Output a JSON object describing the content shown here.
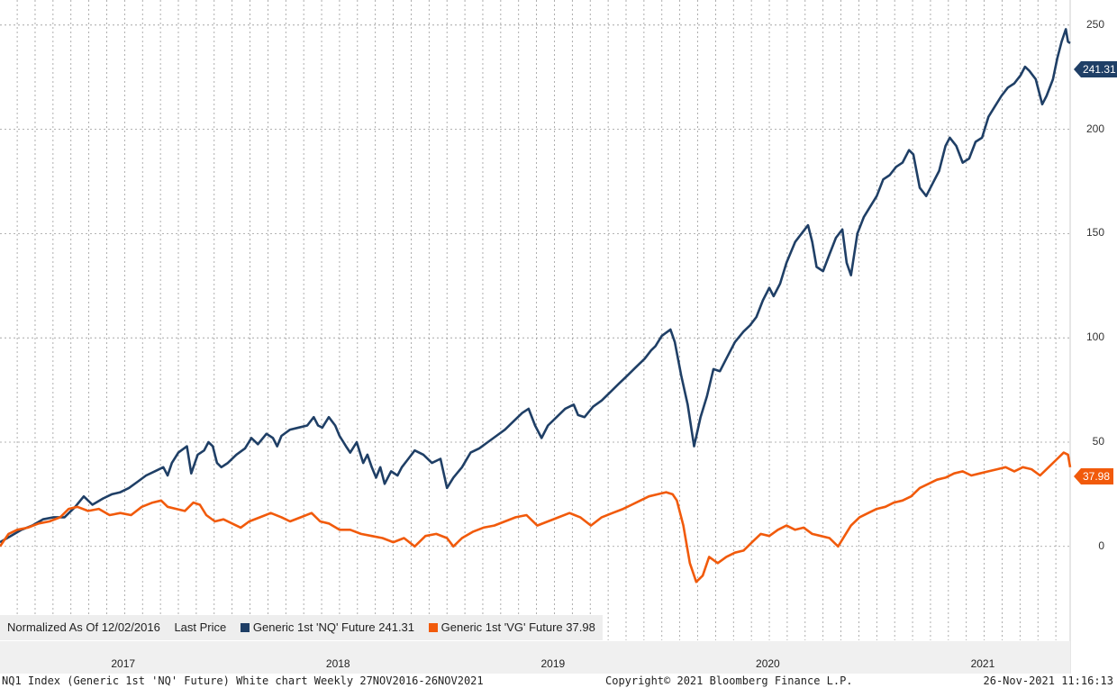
{
  "chart_data": {
    "type": "line",
    "title": "NQ1 Index (Generic 1st 'NQ' Future) White chart",
    "normalized_label": "Normalized As Of 12/02/2016",
    "price_label": "Last Price",
    "x_range": [
      2016.92,
      2021.9
    ],
    "ylim": [
      -45,
      262
    ],
    "yticks": [
      0,
      50,
      100,
      150,
      200,
      250
    ],
    "xticks": [
      {
        "label": "2017",
        "x": 2017.0
      },
      {
        "label": "2018",
        "x": 2018.0
      },
      {
        "label": "2019",
        "x": 2019.0
      },
      {
        "label": "2020",
        "x": 2020.0
      },
      {
        "label": "2021",
        "x": 2021.0
      }
    ],
    "series": [
      {
        "name": "Generic 1st 'NQ' Future",
        "last": "241.31",
        "color": "#1f3f66",
        "points": [
          [
            2016.92,
            2
          ],
          [
            2016.97,
            5
          ],
          [
            2017.02,
            8
          ],
          [
            2017.07,
            10
          ],
          [
            2017.12,
            13
          ],
          [
            2017.17,
            14
          ],
          [
            2017.22,
            14
          ],
          [
            2017.27,
            19
          ],
          [
            2017.31,
            24
          ],
          [
            2017.35,
            20
          ],
          [
            2017.4,
            23
          ],
          [
            2017.44,
            25
          ],
          [
            2017.48,
            26
          ],
          [
            2017.52,
            28
          ],
          [
            2017.56,
            31
          ],
          [
            2017.6,
            34
          ],
          [
            2017.64,
            36
          ],
          [
            2017.68,
            38
          ],
          [
            2017.7,
            34
          ],
          [
            2017.72,
            40
          ],
          [
            2017.75,
            45
          ],
          [
            2017.79,
            48
          ],
          [
            2017.81,
            35
          ],
          [
            2017.84,
            44
          ],
          [
            2017.87,
            46
          ],
          [
            2017.89,
            50
          ],
          [
            2017.91,
            48
          ],
          [
            2017.93,
            40
          ],
          [
            2017.95,
            38
          ],
          [
            2017.98,
            40
          ],
          [
            2018.02,
            44
          ],
          [
            2018.06,
            47
          ],
          [
            2018.09,
            52
          ],
          [
            2018.12,
            49
          ],
          [
            2018.16,
            54
          ],
          [
            2018.19,
            52
          ],
          [
            2018.21,
            48
          ],
          [
            2018.23,
            53
          ],
          [
            2018.27,
            56
          ],
          [
            2018.31,
            57
          ],
          [
            2018.35,
            58
          ],
          [
            2018.38,
            62
          ],
          [
            2018.4,
            58
          ],
          [
            2018.42,
            57
          ],
          [
            2018.45,
            62
          ],
          [
            2018.48,
            58
          ],
          [
            2018.5,
            53
          ],
          [
            2018.53,
            48
          ],
          [
            2018.55,
            45
          ],
          [
            2018.58,
            50
          ],
          [
            2018.61,
            40
          ],
          [
            2018.63,
            44
          ],
          [
            2018.65,
            38
          ],
          [
            2018.67,
            33
          ],
          [
            2018.69,
            38
          ],
          [
            2018.71,
            30
          ],
          [
            2018.74,
            36
          ],
          [
            2018.77,
            34
          ],
          [
            2018.79,
            38
          ],
          [
            2018.82,
            42
          ],
          [
            2018.85,
            46
          ],
          [
            2018.89,
            44
          ],
          [
            2018.93,
            40
          ],
          [
            2018.97,
            42
          ],
          [
            2019.0,
            28
          ],
          [
            2019.03,
            33
          ],
          [
            2019.07,
            38
          ],
          [
            2019.11,
            45
          ],
          [
            2019.15,
            47
          ],
          [
            2019.19,
            50
          ],
          [
            2019.23,
            53
          ],
          [
            2019.27,
            56
          ],
          [
            2019.31,
            60
          ],
          [
            2019.35,
            64
          ],
          [
            2019.38,
            66
          ],
          [
            2019.41,
            58
          ],
          [
            2019.44,
            52
          ],
          [
            2019.47,
            58
          ],
          [
            2019.51,
            62
          ],
          [
            2019.55,
            66
          ],
          [
            2019.59,
            68
          ],
          [
            2019.61,
            63
          ],
          [
            2019.64,
            62
          ],
          [
            2019.68,
            67
          ],
          [
            2019.72,
            70
          ],
          [
            2019.76,
            74
          ],
          [
            2019.8,
            78
          ],
          [
            2019.84,
            82
          ],
          [
            2019.88,
            86
          ],
          [
            2019.92,
            90
          ],
          [
            2019.95,
            94
          ],
          [
            2019.97,
            96
          ],
          [
            2020.0,
            101
          ],
          [
            2020.04,
            104
          ],
          [
            2020.06,
            98
          ],
          [
            2020.09,
            82
          ],
          [
            2020.12,
            68
          ],
          [
            2020.15,
            48
          ],
          [
            2020.18,
            62
          ],
          [
            2020.21,
            72
          ],
          [
            2020.24,
            85
          ],
          [
            2020.27,
            84
          ],
          [
            2020.3,
            90
          ],
          [
            2020.34,
            98
          ],
          [
            2020.38,
            103
          ],
          [
            2020.41,
            106
          ],
          [
            2020.44,
            110
          ],
          [
            2020.47,
            118
          ],
          [
            2020.5,
            124
          ],
          [
            2020.52,
            120
          ],
          [
            2020.55,
            126
          ],
          [
            2020.58,
            136
          ],
          [
            2020.62,
            146
          ],
          [
            2020.65,
            150
          ],
          [
            2020.68,
            154
          ],
          [
            2020.7,
            146
          ],
          [
            2020.72,
            134
          ],
          [
            2020.75,
            132
          ],
          [
            2020.78,
            140
          ],
          [
            2020.81,
            148
          ],
          [
            2020.84,
            152
          ],
          [
            2020.86,
            136
          ],
          [
            2020.88,
            130
          ],
          [
            2020.91,
            150
          ],
          [
            2020.94,
            158
          ],
          [
            2020.97,
            163
          ],
          [
            2021.0,
            168
          ],
          [
            2021.03,
            176
          ],
          [
            2021.06,
            178
          ],
          [
            2021.09,
            182
          ],
          [
            2021.12,
            184
          ],
          [
            2021.15,
            190
          ],
          [
            2021.17,
            188
          ],
          [
            2021.2,
            172
          ],
          [
            2021.23,
            168
          ],
          [
            2021.26,
            174
          ],
          [
            2021.29,
            180
          ],
          [
            2021.32,
            192
          ],
          [
            2021.34,
            196
          ],
          [
            2021.37,
            192
          ],
          [
            2021.4,
            184
          ],
          [
            2021.43,
            186
          ],
          [
            2021.46,
            194
          ],
          [
            2021.49,
            196
          ],
          [
            2021.52,
            206
          ],
          [
            2021.55,
            211
          ],
          [
            2021.58,
            216
          ],
          [
            2021.61,
            220
          ],
          [
            2021.64,
            222
          ],
          [
            2021.67,
            226
          ],
          [
            2021.69,
            230
          ],
          [
            2021.71,
            228
          ],
          [
            2021.74,
            224
          ],
          [
            2021.77,
            212
          ],
          [
            2021.79,
            216
          ],
          [
            2021.82,
            224
          ],
          [
            2021.84,
            234
          ],
          [
            2021.86,
            242
          ],
          [
            2021.88,
            248
          ],
          [
            2021.89,
            242
          ],
          [
            2021.9,
            241.31
          ]
        ]
      },
      {
        "name": "Generic 1st 'VG' Future",
        "last": "37.98",
        "color": "#f15a0b",
        "points": [
          [
            2016.92,
            0
          ],
          [
            2016.96,
            6
          ],
          [
            2017.0,
            8
          ],
          [
            2017.05,
            9
          ],
          [
            2017.1,
            11
          ],
          [
            2017.15,
            12
          ],
          [
            2017.2,
            14
          ],
          [
            2017.24,
            18
          ],
          [
            2017.28,
            19
          ],
          [
            2017.33,
            17
          ],
          [
            2017.38,
            18
          ],
          [
            2017.43,
            15
          ],
          [
            2017.48,
            16
          ],
          [
            2017.53,
            15
          ],
          [
            2017.58,
            19
          ],
          [
            2017.63,
            21
          ],
          [
            2017.67,
            22
          ],
          [
            2017.7,
            19
          ],
          [
            2017.74,
            18
          ],
          [
            2017.78,
            17
          ],
          [
            2017.82,
            21
          ],
          [
            2017.85,
            20
          ],
          [
            2017.88,
            15
          ],
          [
            2017.92,
            12
          ],
          [
            2017.96,
            13
          ],
          [
            2018.0,
            11
          ],
          [
            2018.04,
            9
          ],
          [
            2018.08,
            12
          ],
          [
            2018.13,
            14
          ],
          [
            2018.18,
            16
          ],
          [
            2018.23,
            14
          ],
          [
            2018.27,
            12
          ],
          [
            2018.32,
            14
          ],
          [
            2018.37,
            16
          ],
          [
            2018.41,
            12
          ],
          [
            2018.45,
            11
          ],
          [
            2018.5,
            8
          ],
          [
            2018.55,
            8
          ],
          [
            2018.6,
            6
          ],
          [
            2018.65,
            5
          ],
          [
            2018.7,
            4
          ],
          [
            2018.75,
            2
          ],
          [
            2018.8,
            4
          ],
          [
            2018.85,
            0
          ],
          [
            2018.9,
            5
          ],
          [
            2018.95,
            6
          ],
          [
            2019.0,
            4
          ],
          [
            2019.03,
            0
          ],
          [
            2019.07,
            4
          ],
          [
            2019.12,
            7
          ],
          [
            2019.17,
            9
          ],
          [
            2019.22,
            10
          ],
          [
            2019.27,
            12
          ],
          [
            2019.32,
            14
          ],
          [
            2019.37,
            15
          ],
          [
            2019.42,
            10
          ],
          [
            2019.47,
            12
          ],
          [
            2019.52,
            14
          ],
          [
            2019.57,
            16
          ],
          [
            2019.62,
            14
          ],
          [
            2019.67,
            10
          ],
          [
            2019.72,
            14
          ],
          [
            2019.77,
            16
          ],
          [
            2019.82,
            18
          ],
          [
            2019.86,
            20
          ],
          [
            2019.9,
            22
          ],
          [
            2019.94,
            24
          ],
          [
            2019.98,
            25
          ],
          [
            2020.02,
            26
          ],
          [
            2020.05,
            25
          ],
          [
            2020.07,
            22
          ],
          [
            2020.1,
            10
          ],
          [
            2020.13,
            -8
          ],
          [
            2020.16,
            -17
          ],
          [
            2020.19,
            -14
          ],
          [
            2020.22,
            -5
          ],
          [
            2020.26,
            -8
          ],
          [
            2020.3,
            -5
          ],
          [
            2020.34,
            -3
          ],
          [
            2020.38,
            -2
          ],
          [
            2020.42,
            2
          ],
          [
            2020.46,
            6
          ],
          [
            2020.5,
            5
          ],
          [
            2020.54,
            8
          ],
          [
            2020.58,
            10
          ],
          [
            2020.62,
            8
          ],
          [
            2020.66,
            9
          ],
          [
            2020.7,
            6
          ],
          [
            2020.74,
            5
          ],
          [
            2020.78,
            4
          ],
          [
            2020.82,
            0
          ],
          [
            2020.85,
            5
          ],
          [
            2020.88,
            10
          ],
          [
            2020.92,
            14
          ],
          [
            2020.96,
            16
          ],
          [
            2021.0,
            18
          ],
          [
            2021.04,
            19
          ],
          [
            2021.08,
            21
          ],
          [
            2021.12,
            22
          ],
          [
            2021.16,
            24
          ],
          [
            2021.2,
            28
          ],
          [
            2021.24,
            30
          ],
          [
            2021.28,
            32
          ],
          [
            2021.32,
            33
          ],
          [
            2021.36,
            35
          ],
          [
            2021.4,
            36
          ],
          [
            2021.44,
            34
          ],
          [
            2021.48,
            35
          ],
          [
            2021.52,
            36
          ],
          [
            2021.56,
            37
          ],
          [
            2021.6,
            38
          ],
          [
            2021.64,
            36
          ],
          [
            2021.68,
            38
          ],
          [
            2021.72,
            37
          ],
          [
            2021.76,
            34
          ],
          [
            2021.8,
            38
          ],
          [
            2021.84,
            42
          ],
          [
            2021.87,
            45
          ],
          [
            2021.89,
            44
          ],
          [
            2021.9,
            37.98
          ]
        ]
      }
    ]
  },
  "footer": {
    "left": "NQ1 Index (Generic 1st 'NQ' Future) White chart  Weekly 27NOV2016-26NOV2021",
    "center": "Copyright© 2021 Bloomberg Finance L.P.",
    "right": "26-Nov-2021 11:16:13"
  }
}
